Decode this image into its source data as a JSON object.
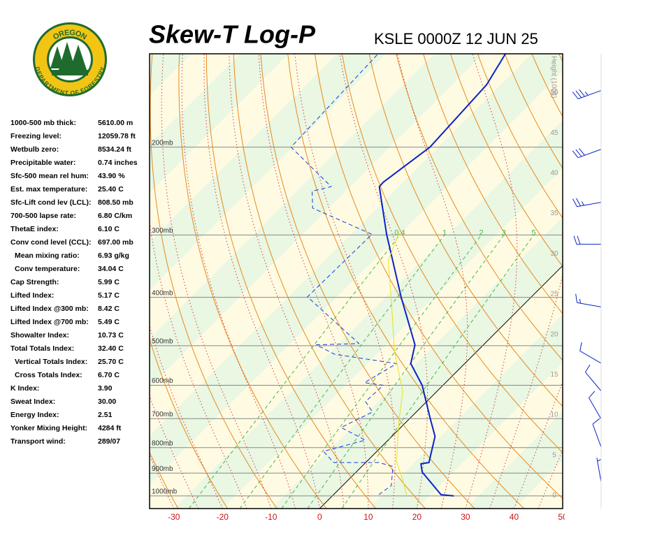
{
  "logo": {
    "top": "OREGON",
    "bottom": "DEPARTMENT OF FORESTRY"
  },
  "stats_panel": [
    {
      "label": "1000-500 mb thick:",
      "value": "5610.00 m"
    },
    {
      "label": "Freezing level:",
      "value": "12059.78 ft"
    },
    {
      "label": "Wetbulb zero:",
      "value": "8534.24 ft"
    },
    {
      "label": "Precipitable water:",
      "value": "0.74 inches"
    },
    {
      "label": "Sfc-500 mean rel hum:",
      "value": "43.90 %"
    },
    {
      "label": "Est. max temperature:",
      "value": "25.40 C"
    },
    {
      "label": "Sfc-Lift cond lev (LCL):",
      "value": "808.50 mb"
    },
    {
      "label": "700-500 lapse rate:",
      "value": "6.80 C/km"
    },
    {
      "label": "ThetaE index:",
      "value": "6.10 C"
    },
    {
      "label": "Conv cond level (CCL):",
      "value": "697.00 mb"
    },
    {
      "label": "Mean mixing ratio:",
      "value": "6.93 g/kg",
      "indent": true
    },
    {
      "label": "Conv temperature:",
      "value": "34.04 C",
      "indent": true
    },
    {
      "label": "Cap Strength:",
      "value": "5.99 C"
    },
    {
      "label": "Lifted Index:",
      "value": "5.17 C"
    },
    {
      "label": "Lifted Index @300 mb:",
      "value": "8.42 C"
    },
    {
      "label": "Lifted Index @700 mb:",
      "value": "5.49 C"
    },
    {
      "label": "Showalter Index:",
      "value": "10.73 C"
    },
    {
      "label": "Total Totals Index:",
      "value": "32.40 C"
    },
    {
      "label": "Vertical Totals Index:",
      "value": "25.70 C",
      "indent": true
    },
    {
      "label": "Cross Totals Index:",
      "value": "6.70 C",
      "indent": true
    },
    {
      "label": "K Index:",
      "value": "3.90"
    },
    {
      "label": "Sweat Index:",
      "value": "30.00"
    },
    {
      "label": "Energy Index:",
      "value": "2.51"
    },
    {
      "label": "Yonker Mixing Height:",
      "value": "4284 ft"
    },
    {
      "label": "Transport wind:",
      "value": "289/07"
    }
  ],
  "chart_data": {
    "type": "skewt",
    "title": "Skew-T Log-P",
    "subtitle": "KSLE 0000Z 12 JUN 25",
    "xlim": [
      -35,
      50
    ],
    "xticks": [
      -30,
      -20,
      -10,
      0,
      10,
      20,
      30,
      40,
      50
    ],
    "ylim": [
      1060,
      130
    ],
    "yticks": [
      {
        "value": 1000,
        "label": "1000mb"
      },
      {
        "value": 900,
        "label": "900mb"
      },
      {
        "value": 800,
        "label": "800mb"
      },
      {
        "value": 700,
        "label": "700mb"
      },
      {
        "value": 600,
        "label": "600mb"
      },
      {
        "value": 500,
        "label": "500mb"
      },
      {
        "value": 400,
        "label": "400mb"
      },
      {
        "value": 300,
        "label": "300mb"
      },
      {
        "value": 200,
        "label": "200mb"
      }
    ],
    "y_log": true,
    "y2label": "Height (100ft)",
    "y2lim": [
      -1.6,
      54.8
    ],
    "y2ticks": [
      0,
      5,
      10,
      15,
      20,
      25,
      30,
      35,
      40,
      45,
      50
    ],
    "band_colors": [
      "#e9f7e3",
      "#fffbe3"
    ],
    "dry_adiabat_color": "#e8891c",
    "moist_adiabat_color": "#d43c3c",
    "mixing_ratio_color": "#49b449",
    "mixing_ratio_lines": [
      0.4,
      1,
      2,
      3,
      5
    ],
    "series": [
      {
        "color": "#0a22c8",
        "width": 2,
        "dash": false,
        "pressure": [
          1000,
          994,
          896,
          862,
          857,
          760,
          697,
          600,
          543,
          498,
          400,
          299,
          240,
          235,
          200,
          150,
          130
        ],
        "values": [
          25.0,
          22.1,
          13.6,
          11.6,
          13.0,
          8.9,
          4.0,
          -4.3,
          -11.1,
          -14.1,
          -26.7,
          -42.7,
          -54.0,
          -54.1,
          -51.7,
          -52.9,
          -55.4
        ]
      },
      {
        "color": "#1a3ad8",
        "width": 1,
        "dash": true,
        "pressure": [
          994,
          953,
          873,
          857,
          857,
          814,
          773,
          729,
          679,
          647,
          600,
          593,
          543,
          520,
          498,
          495,
          399,
          299,
          265,
          245,
          240,
          200,
          130
        ],
        "values": [
          9.3,
          10.0,
          6.4,
          2.7,
          -6.6,
          -11.0,
          -4.7,
          -12.3,
          -9.0,
          -12.6,
          -12.3,
          -16.7,
          -14.0,
          -28.7,
          -34.4,
          -25.9,
          -46.1,
          -45.7,
          -63.3,
          -66.9,
          -63.9,
          -80.3,
          -81.6
        ]
      },
      {
        "color": "#e8e020",
        "width": 1,
        "dash": false,
        "pressure": [
          1000,
          937,
          851,
          701,
          619,
          514,
          410,
          338,
          297
        ],
        "values": [
          15.3,
          11.7,
          6.0,
          -2.1,
          -6.9,
          -16.9,
          -27.6,
          -36.9,
          -40.4
        ]
      }
    ],
    "winds": {
      "color": "#0a22c8",
      "pressure": [
        154,
        202,
        258,
        313,
        418,
        542,
        616,
        701,
        798,
        937
      ],
      "direction": [
        250,
        250,
        260,
        270,
        280,
        300,
        320,
        330,
        340,
        350
      ],
      "speed": [
        35,
        30,
        25,
        20,
        15,
        10,
        10,
        10,
        10,
        5
      ]
    }
  }
}
